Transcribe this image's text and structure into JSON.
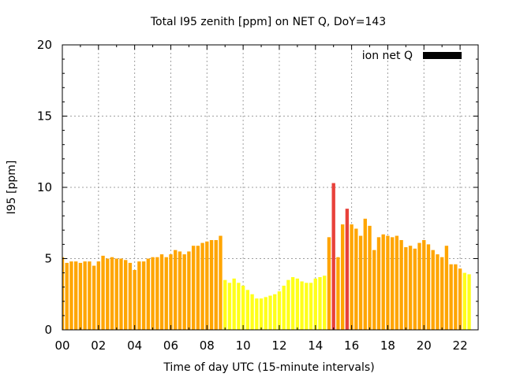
{
  "chart_data": {
    "type": "bar",
    "title": "Total I95 zenith [ppm] on NET Q, DoY=143",
    "xlabel": "Time of day UTC (15-minute intervals)",
    "ylabel": "I95 [ppm]",
    "xlim": [
      0,
      23
    ],
    "ylim": [
      0,
      20
    ],
    "x_ticks": [
      "00",
      "02",
      "04",
      "06",
      "08",
      "10",
      "12",
      "14",
      "16",
      "18",
      "20",
      "22"
    ],
    "y_ticks": [
      "0",
      "5",
      "10",
      "15",
      "20"
    ],
    "grid": true,
    "legend": {
      "position": "top-right",
      "label": "ion net Q",
      "color": "#000000"
    },
    "bar_colors": {
      "low": "#ffff1a",
      "moderate": "#ffa500",
      "high": "#e8413a"
    },
    "interval_hours": 0.25,
    "values": [
      5.1,
      4.7,
      4.8,
      4.8,
      4.7,
      4.8,
      4.8,
      4.5,
      4.8,
      5.2,
      5.0,
      5.1,
      5.0,
      5.0,
      4.9,
      4.7,
      4.2,
      4.8,
      4.8,
      5.0,
      5.1,
      5.1,
      5.3,
      5.1,
      5.3,
      5.6,
      5.5,
      5.3,
      5.5,
      5.9,
      5.9,
      6.1,
      6.2,
      6.3,
      6.3,
      6.6,
      3.5,
      3.3,
      3.6,
      3.3,
      3.1,
      2.8,
      2.5,
      2.2,
      2.2,
      2.3,
      2.4,
      2.5,
      2.7,
      3.1,
      3.5,
      3.7,
      3.6,
      3.4,
      3.3,
      3.3,
      3.6,
      3.7,
      3.8,
      6.5,
      10.3,
      5.1,
      7.4,
      8.5,
      7.4,
      7.1,
      6.6,
      7.8,
      7.3,
      5.6,
      6.5,
      6.7,
      6.6,
      6.5,
      6.6,
      6.3,
      5.8,
      5.9,
      5.7,
      6.1,
      6.3,
      6.0,
      5.6,
      5.3,
      5.1,
      5.9,
      4.6,
      4.6,
      4.3,
      4.0,
      3.9
    ],
    "bar_levels": [
      "moderate",
      "moderate",
      "moderate",
      "moderate",
      "moderate",
      "moderate",
      "moderate",
      "moderate",
      "moderate",
      "moderate",
      "moderate",
      "moderate",
      "moderate",
      "moderate",
      "moderate",
      "moderate",
      "moderate",
      "moderate",
      "moderate",
      "moderate",
      "moderate",
      "moderate",
      "moderate",
      "moderate",
      "moderate",
      "moderate",
      "moderate",
      "moderate",
      "moderate",
      "moderate",
      "moderate",
      "moderate",
      "moderate",
      "moderate",
      "moderate",
      "moderate",
      "low",
      "low",
      "low",
      "low",
      "low",
      "low",
      "low",
      "low",
      "low",
      "low",
      "low",
      "low",
      "low",
      "low",
      "low",
      "low",
      "low",
      "low",
      "low",
      "low",
      "low",
      "low",
      "low",
      "moderate",
      "high",
      "moderate",
      "moderate",
      "high",
      "moderate",
      "moderate",
      "moderate",
      "moderate",
      "moderate",
      "moderate",
      "moderate",
      "moderate",
      "moderate",
      "moderate",
      "moderate",
      "moderate",
      "moderate",
      "moderate",
      "moderate",
      "moderate",
      "moderate",
      "moderate",
      "moderate",
      "moderate",
      "moderate",
      "moderate",
      "moderate",
      "moderate",
      "moderate",
      "low",
      "low"
    ]
  }
}
